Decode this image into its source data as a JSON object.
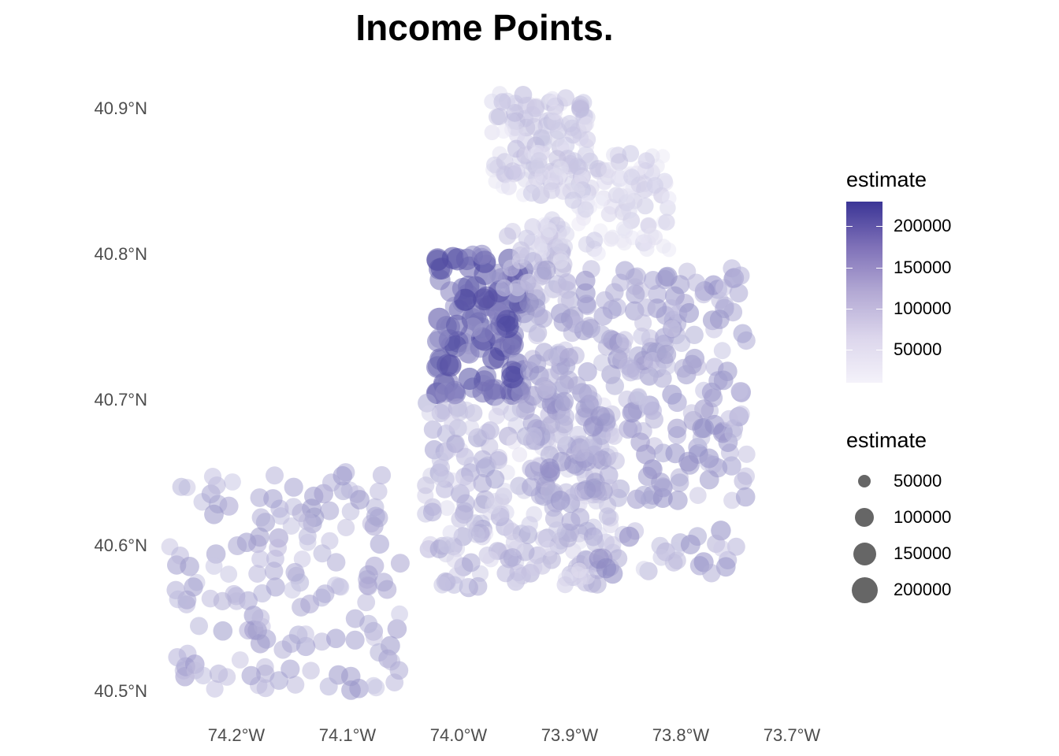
{
  "title": "Income Points.",
  "chart_data": {
    "type": "scatter",
    "title": "Income Points.",
    "xlabel": "",
    "ylabel": "",
    "x_ticks": [
      -74.2,
      -74.1,
      -74.0,
      -73.9,
      -73.8,
      -73.7
    ],
    "x_tick_labels": [
      "74.2°W",
      "74.1°W",
      "74.0°W",
      "73.9°W",
      "73.8°W",
      "73.7°W"
    ],
    "y_ticks": [
      40.9,
      40.8,
      40.7,
      40.6,
      40.5
    ],
    "y_tick_labels": [
      "40.9°N",
      "40.8°N",
      "40.7°N",
      "40.6°N",
      "40.5°N"
    ],
    "xlim": [
      -74.26,
      -73.69
    ],
    "ylim": [
      40.495,
      40.918
    ],
    "grid": false,
    "legend_position": "right",
    "colors": {
      "low": "#f4f2fa",
      "high": "#3b3596",
      "size_key": "#666666"
    },
    "color_legend": {
      "title": "estimate",
      "breaks": [
        200000,
        150000,
        100000,
        50000
      ],
      "labels": [
        "200000",
        "150000",
        "100000",
        "50000"
      ],
      "range": [
        10000,
        230000
      ]
    },
    "size_legend": {
      "title": "estimate",
      "breaks": [
        50000,
        100000,
        150000,
        200000
      ],
      "labels": [
        "50000",
        "100000",
        "150000",
        "200000"
      ]
    },
    "regions": [
      {
        "lon": [
          -73.97,
          -73.88
        ],
        "lat": [
          40.84,
          40.91
        ],
        "income": [
          20000,
          80000
        ],
        "n": 120
      },
      {
        "lon": [
          -73.93,
          -73.81
        ],
        "lat": [
          40.8,
          40.87
        ],
        "income": [
          15000,
          70000
        ],
        "n": 120
      },
      {
        "lon": [
          -74.02,
          -73.94
        ],
        "lat": [
          40.7,
          40.8
        ],
        "income": [
          110000,
          220000
        ],
        "n": 140
      },
      {
        "lon": [
          -73.96,
          -73.9
        ],
        "lat": [
          40.77,
          40.82
        ],
        "income": [
          30000,
          90000
        ],
        "n": 50
      },
      {
        "lon": [
          -74.03,
          -73.86
        ],
        "lat": [
          40.57,
          40.7
        ],
        "income": [
          30000,
          110000
        ],
        "n": 260
      },
      {
        "lon": [
          -73.94,
          -73.74
        ],
        "lat": [
          40.63,
          40.79
        ],
        "income": [
          60000,
          130000
        ],
        "n": 300
      },
      {
        "lon": [
          -74.26,
          -74.05
        ],
        "lat": [
          40.5,
          40.65
        ],
        "income": [
          60000,
          120000
        ],
        "n": 160
      },
      {
        "lon": [
          -73.88,
          -73.75
        ],
        "lat": [
          40.58,
          40.61
        ],
        "income": [
          40000,
          140000
        ],
        "n": 30
      }
    ]
  }
}
